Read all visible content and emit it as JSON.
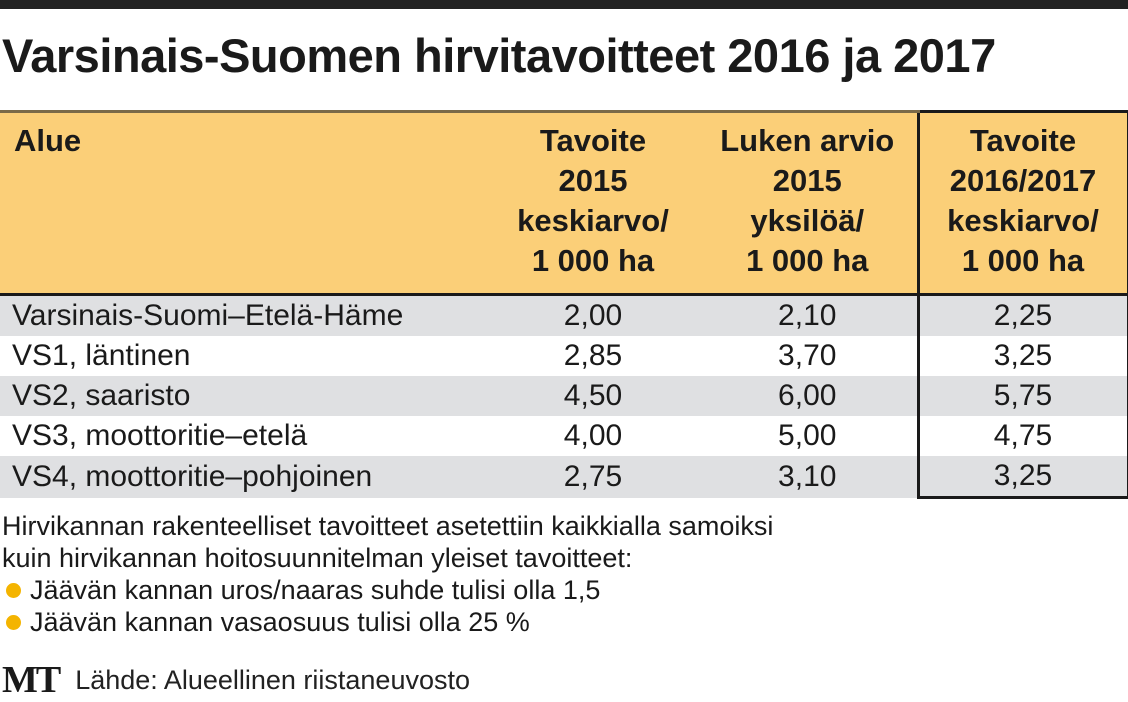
{
  "title": "Varsinais-Suomen hirvitavoitteet 2016 ja 2017",
  "chart_data": {
    "type": "table",
    "columns": [
      [
        "Alue"
      ],
      [
        "Tavoite",
        "2015",
        "keskiarvo/",
        "1 000 ha"
      ],
      [
        "Luken arvio",
        "2015",
        "yksilöä/",
        "1 000 ha"
      ],
      [
        "Tavoite",
        "2016/2017",
        "keskiarvo/",
        "1 000 ha"
      ]
    ],
    "rows": [
      {
        "region": "Varsinais-Suomi–Etelä-Häme",
        "values": [
          "2,00",
          "2,10",
          "2,25"
        ]
      },
      {
        "region": "VS1, läntinen",
        "values": [
          "2,85",
          "3,70",
          "3,25"
        ]
      },
      {
        "region": "VS2, saaristo",
        "values": [
          "4,50",
          "6,00",
          "5,75"
        ]
      },
      {
        "region": "VS3, moottoritie–etelä",
        "values": [
          "4,00",
          "5,00",
          "4,75"
        ]
      },
      {
        "region": "VS4, moottoritie–pohjoinen",
        "values": [
          "2,75",
          "3,10",
          "3,25"
        ]
      }
    ],
    "highlighted_column": 3
  },
  "notes": {
    "lines": [
      "Hirvikannan rakenteelliset tavoitteet asetettiin kaikkialla samoiksi",
      "kuin hirvikannan hoitosuunnitelman yleiset tavoitteet:"
    ],
    "bullets": [
      "Jäävän kannan uros/naaras suhde tulisi olla 1,5",
      "Jäävän kannan vasaosuus tulisi olla 25 %"
    ]
  },
  "footer": {
    "logo": "MT",
    "source": "Lähde: Alueellinen riistaneuvosto"
  },
  "colors": {
    "header_bg": "#fbcf78",
    "stripe_bg": "#dfe0e2",
    "bullet": "#f4b400"
  }
}
